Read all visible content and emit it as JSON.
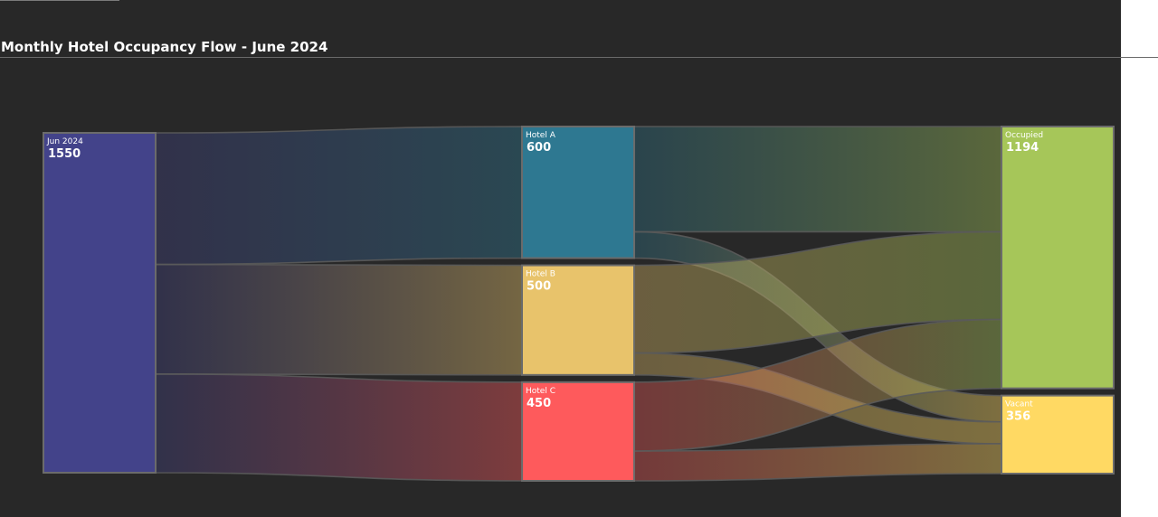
{
  "title": "Monthly Hotel Occupancy Flow - June 2024",
  "chart_data": {
    "type": "sankey",
    "title": "Monthly Hotel Occupancy Flow - June 2024",
    "nodes": [
      {
        "id": "jun",
        "name": "Jun 2024",
        "value": 1550,
        "color": "#43438a"
      },
      {
        "id": "a",
        "name": "Hotel A",
        "value": 600,
        "color": "#2e7891"
      },
      {
        "id": "b",
        "name": "Hotel B",
        "value": 500,
        "color": "#e8c36b"
      },
      {
        "id": "c",
        "name": "Hotel C",
        "value": 450,
        "color": "#fe5a5c"
      },
      {
        "id": "occ",
        "name": "Occupied",
        "value": 1194,
        "color": "#a6c659"
      },
      {
        "id": "vac",
        "name": "Vacant",
        "value": 356,
        "color": "#ffd963"
      }
    ],
    "links": [
      {
        "source": "jun",
        "target": "a",
        "value": 600
      },
      {
        "source": "jun",
        "target": "b",
        "value": 500
      },
      {
        "source": "jun",
        "target": "c",
        "value": 450
      },
      {
        "source": "a",
        "target": "occ",
        "value": 480
      },
      {
        "source": "a",
        "target": "vac",
        "value": 120
      },
      {
        "source": "b",
        "target": "occ",
        "value": 400
      },
      {
        "source": "b",
        "target": "vac",
        "value": 100
      },
      {
        "source": "c",
        "target": "occ",
        "value": 314
      },
      {
        "source": "c",
        "target": "vac",
        "value": 136
      }
    ]
  }
}
